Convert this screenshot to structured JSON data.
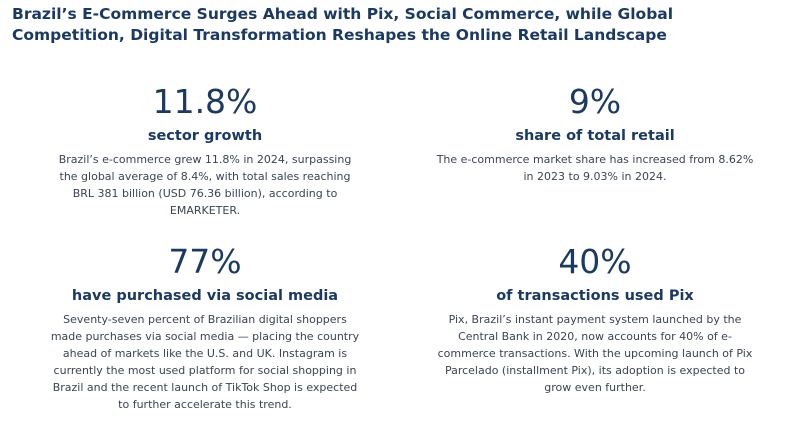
{
  "title": "Brazil’s E-Commerce Surges Ahead with Pix, Social Commerce, while Global Competition, Digital Transformation Reshapes the Online Retail Landscape",
  "stats": [
    {
      "value": "11.8%",
      "label": "sector growth",
      "description": "Brazil’s e-commerce grew 11.8% in 2024, surpassing the global average of 8.4%, with total sales reaching BRL 381 billion (USD 76.36 billion), according to EMARKETER."
    },
    {
      "value": "9%",
      "label": "share of total retail",
      "description": "The e-commerce market share has increased from 8.62% in 2023 to 9.03% in 2024."
    },
    {
      "value": "77%",
      "label": "have purchased via social media",
      "description": "Seventy-seven percent of Brazilian digital shoppers made purchases via social media — placing the country ahead of markets like the U.S. and UK. Instagram is currently the most used platform for social shopping in Brazil and the recent launch of TikTok Shop is expected to further accelerate this trend."
    },
    {
      "value": "40%",
      "label": "of transactions used Pix",
      "description": "Pix, Brazil’s instant payment system launched by the Central Bank in 2020, now accounts for 40% of e-commerce transactions. With the upcoming launch of Pix Parcelado (installment Pix), its adoption is expected to grow even further."
    }
  ],
  "colors": {
    "heading": "#1b3a63",
    "body_text": "#3a4454",
    "background": "#ffffff"
  }
}
